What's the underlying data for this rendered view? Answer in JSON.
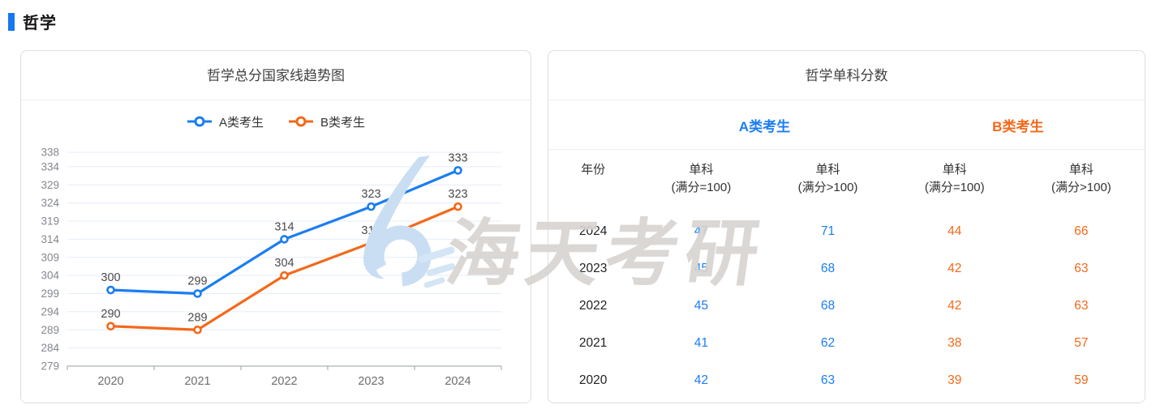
{
  "section": {
    "title": "哲学"
  },
  "chart_panel": {
    "title": "哲学总分国家线趋势图"
  },
  "chart_data": {
    "type": "line",
    "title": "哲学总分国家线趋势图",
    "x": [
      "2020",
      "2021",
      "2022",
      "2023",
      "2024"
    ],
    "series": [
      {
        "name": "A类考生",
        "color": "#1b7df2",
        "values": [
          300,
          299,
          314,
          323,
          333
        ]
      },
      {
        "name": "B类考生",
        "color": "#f2691a",
        "values": [
          290,
          289,
          304,
          313,
          323
        ]
      }
    ],
    "ylim": [
      279,
      338
    ],
    "yticks": [
      338,
      334,
      329,
      324,
      319,
      314,
      309,
      304,
      299,
      294,
      289,
      284,
      279
    ],
    "grid": true,
    "legend_position": "top",
    "xlabel": "",
    "ylabel": ""
  },
  "table_panel": {
    "title": "哲学单科分数",
    "groups": [
      {
        "label": "A类考生",
        "color": "#1b7df2"
      },
      {
        "label": "B类考生",
        "color": "#f2691a"
      }
    ],
    "columns": [
      {
        "label": "年份",
        "sub": ""
      },
      {
        "label": "单科",
        "sub": "(满分=100)"
      },
      {
        "label": "单科",
        "sub": "(满分>100)"
      },
      {
        "label": "单科",
        "sub": "(满分=100)"
      },
      {
        "label": "单科",
        "sub": "(满分>100)"
      }
    ],
    "rows": [
      {
        "year": "2024",
        "values": [
          "47",
          "71",
          "44",
          "66"
        ]
      },
      {
        "year": "2023",
        "values": [
          "45",
          "68",
          "42",
          "63"
        ]
      },
      {
        "year": "2022",
        "values": [
          "45",
          "68",
          "42",
          "63"
        ]
      },
      {
        "year": "2021",
        "values": [
          "41",
          "62",
          "38",
          "57"
        ]
      },
      {
        "year": "2020",
        "values": [
          "42",
          "63",
          "39",
          "59"
        ]
      }
    ]
  },
  "watermark": {
    "text": "海天考研"
  },
  "colors": {
    "accent_blue": "#1b7df2",
    "accent_orange": "#f2691a",
    "section_bar": "#1677f0",
    "gridline": "#e5ecf7",
    "axis": "#9aa0a6",
    "watermark_text": "#d7d3d0",
    "watermark_logo": "#c9def2"
  }
}
